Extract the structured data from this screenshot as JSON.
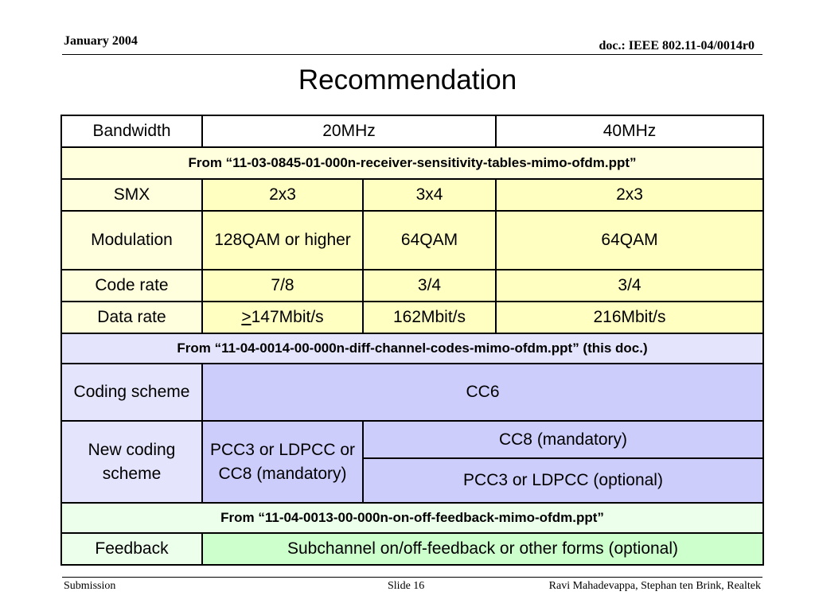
{
  "header": {
    "date": "January 2004",
    "doc": "doc.: IEEE 802.11-04/0014r0"
  },
  "title": "Recommendation",
  "table": {
    "bandwidth": {
      "label": "Bandwidth",
      "bw20": "20MHz",
      "bw40": "40MHz"
    },
    "source1": "From “11-03-0845-01-000n-receiver-sensitivity-tables-mimo-ofdm.ppt”",
    "smx": {
      "label": "SMX",
      "a": "2x3",
      "b": "3x4",
      "c": "2x3"
    },
    "modulation": {
      "label": "Modulation",
      "a": "128QAM or higher",
      "b": "64QAM",
      "c": "64QAM"
    },
    "code_rate": {
      "label": "Code rate",
      "a": "7/8",
      "b": "3/4",
      "c": "3/4"
    },
    "data_rate": {
      "label": "Data rate",
      "a_prefix": ">",
      "a_value": "147Mbit/s",
      "b": "162Mbit/s",
      "c": "216Mbit/s"
    },
    "source2": "From “11-04-0014-00-000n-diff-channel-codes-mimo-ofdm.ppt” (this doc.)",
    "coding_scheme": {
      "label": "Coding scheme",
      "value": "CC6"
    },
    "new_coding_scheme": {
      "label": "New coding scheme",
      "a": "PCC3 or LDPCC or CC8 (mandatory)",
      "mandatory": "CC8 (mandatory)",
      "optional": "PCC3 or LDPCC (optional)"
    },
    "source3": "From “11-04-0013-00-000n-on-off-feedback-mimo-ofdm.ppt”",
    "feedback": {
      "label": "Feedback",
      "value": "Subchannel on/off-feedback or other forms (optional)"
    }
  },
  "footer": {
    "left": "Submission",
    "slide": "Slide 16",
    "authors": "Ravi Mahadevappa, Stephan ten Brink, Realtek"
  }
}
